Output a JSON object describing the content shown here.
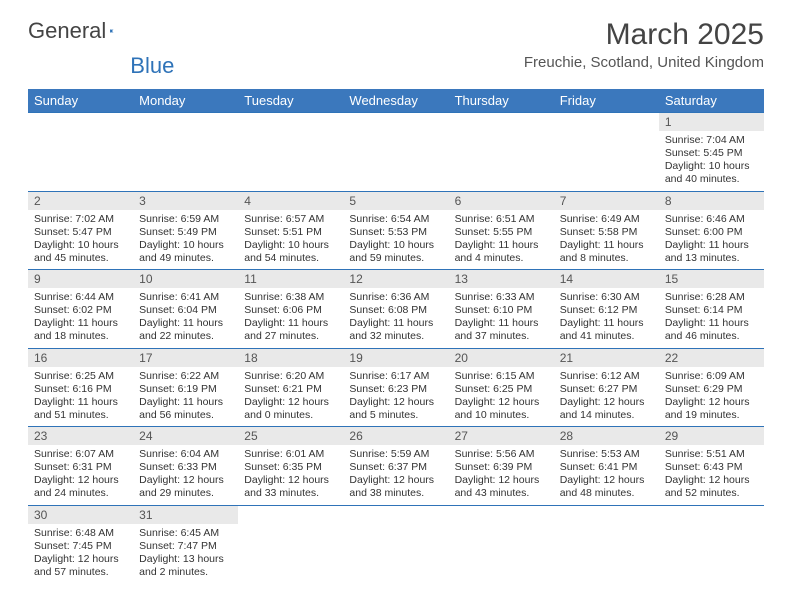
{
  "logo": {
    "word1": "General",
    "word2": "Blue"
  },
  "title": "March 2025",
  "location": "Freuchie, Scotland, United Kingdom",
  "colors": {
    "header_bg": "#3b78bd",
    "header_text": "#ffffff",
    "daynum_bg": "#e9e9e9",
    "border": "#2f73b8",
    "text": "#333333",
    "logo_blue": "#2f73b8"
  },
  "weekdays": [
    "Sunday",
    "Monday",
    "Tuesday",
    "Wednesday",
    "Thursday",
    "Friday",
    "Saturday"
  ],
  "weeks": [
    [
      null,
      null,
      null,
      null,
      null,
      null,
      {
        "n": "1",
        "sr": "7:04 AM",
        "ss": "5:45 PM",
        "dl": "10 hours and 40 minutes."
      }
    ],
    [
      {
        "n": "2",
        "sr": "7:02 AM",
        "ss": "5:47 PM",
        "dl": "10 hours and 45 minutes."
      },
      {
        "n": "3",
        "sr": "6:59 AM",
        "ss": "5:49 PM",
        "dl": "10 hours and 49 minutes."
      },
      {
        "n": "4",
        "sr": "6:57 AM",
        "ss": "5:51 PM",
        "dl": "10 hours and 54 minutes."
      },
      {
        "n": "5",
        "sr": "6:54 AM",
        "ss": "5:53 PM",
        "dl": "10 hours and 59 minutes."
      },
      {
        "n": "6",
        "sr": "6:51 AM",
        "ss": "5:55 PM",
        "dl": "11 hours and 4 minutes."
      },
      {
        "n": "7",
        "sr": "6:49 AM",
        "ss": "5:58 PM",
        "dl": "11 hours and 8 minutes."
      },
      {
        "n": "8",
        "sr": "6:46 AM",
        "ss": "6:00 PM",
        "dl": "11 hours and 13 minutes."
      }
    ],
    [
      {
        "n": "9",
        "sr": "6:44 AM",
        "ss": "6:02 PM",
        "dl": "11 hours and 18 minutes."
      },
      {
        "n": "10",
        "sr": "6:41 AM",
        "ss": "6:04 PM",
        "dl": "11 hours and 22 minutes."
      },
      {
        "n": "11",
        "sr": "6:38 AM",
        "ss": "6:06 PM",
        "dl": "11 hours and 27 minutes."
      },
      {
        "n": "12",
        "sr": "6:36 AM",
        "ss": "6:08 PM",
        "dl": "11 hours and 32 minutes."
      },
      {
        "n": "13",
        "sr": "6:33 AM",
        "ss": "6:10 PM",
        "dl": "11 hours and 37 minutes."
      },
      {
        "n": "14",
        "sr": "6:30 AM",
        "ss": "6:12 PM",
        "dl": "11 hours and 41 minutes."
      },
      {
        "n": "15",
        "sr": "6:28 AM",
        "ss": "6:14 PM",
        "dl": "11 hours and 46 minutes."
      }
    ],
    [
      {
        "n": "16",
        "sr": "6:25 AM",
        "ss": "6:16 PM",
        "dl": "11 hours and 51 minutes."
      },
      {
        "n": "17",
        "sr": "6:22 AM",
        "ss": "6:19 PM",
        "dl": "11 hours and 56 minutes."
      },
      {
        "n": "18",
        "sr": "6:20 AM",
        "ss": "6:21 PM",
        "dl": "12 hours and 0 minutes."
      },
      {
        "n": "19",
        "sr": "6:17 AM",
        "ss": "6:23 PM",
        "dl": "12 hours and 5 minutes."
      },
      {
        "n": "20",
        "sr": "6:15 AM",
        "ss": "6:25 PM",
        "dl": "12 hours and 10 minutes."
      },
      {
        "n": "21",
        "sr": "6:12 AM",
        "ss": "6:27 PM",
        "dl": "12 hours and 14 minutes."
      },
      {
        "n": "22",
        "sr": "6:09 AM",
        "ss": "6:29 PM",
        "dl": "12 hours and 19 minutes."
      }
    ],
    [
      {
        "n": "23",
        "sr": "6:07 AM",
        "ss": "6:31 PM",
        "dl": "12 hours and 24 minutes."
      },
      {
        "n": "24",
        "sr": "6:04 AM",
        "ss": "6:33 PM",
        "dl": "12 hours and 29 minutes."
      },
      {
        "n": "25",
        "sr": "6:01 AM",
        "ss": "6:35 PM",
        "dl": "12 hours and 33 minutes."
      },
      {
        "n": "26",
        "sr": "5:59 AM",
        "ss": "6:37 PM",
        "dl": "12 hours and 38 minutes."
      },
      {
        "n": "27",
        "sr": "5:56 AM",
        "ss": "6:39 PM",
        "dl": "12 hours and 43 minutes."
      },
      {
        "n": "28",
        "sr": "5:53 AM",
        "ss": "6:41 PM",
        "dl": "12 hours and 48 minutes."
      },
      {
        "n": "29",
        "sr": "5:51 AM",
        "ss": "6:43 PM",
        "dl": "12 hours and 52 minutes."
      }
    ],
    [
      {
        "n": "30",
        "sr": "6:48 AM",
        "ss": "7:45 PM",
        "dl": "12 hours and 57 minutes."
      },
      {
        "n": "31",
        "sr": "6:45 AM",
        "ss": "7:47 PM",
        "dl": "13 hours and 2 minutes."
      },
      null,
      null,
      null,
      null,
      null
    ]
  ],
  "labels": {
    "sunrise": "Sunrise:",
    "sunset": "Sunset:",
    "daylight": "Daylight:"
  }
}
